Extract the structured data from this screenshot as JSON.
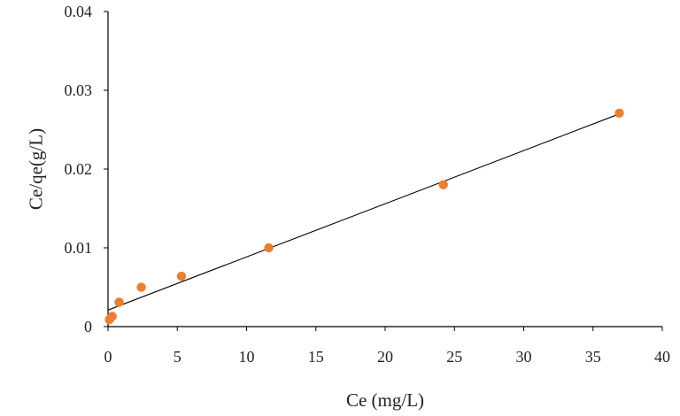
{
  "chart_data": {
    "type": "scatter",
    "title": "",
    "xlabel": "Ce (mg/L)",
    "ylabel": "Ce/qe(g/L)",
    "xlim": [
      0,
      40
    ],
    "ylim": [
      0,
      0.04
    ],
    "x_ticks": [
      "0",
      "5",
      "10",
      "15",
      "20",
      "25",
      "30",
      "35",
      "40"
    ],
    "y_ticks": [
      "0",
      "0.01",
      "0.02",
      "0.03",
      "0.04"
    ],
    "grid": false,
    "legend": "none",
    "series": [
      {
        "kind": "points",
        "color": "#ED7D31",
        "points": [
          {
            "x": 0.1,
            "y": 0.0009
          },
          {
            "x": 0.3,
            "y": 0.0013
          },
          {
            "x": 0.8,
            "y": 0.0031
          },
          {
            "x": 2.4,
            "y": 0.005
          },
          {
            "x": 5.3,
            "y": 0.0064
          },
          {
            "x": 11.6,
            "y": 0.01
          },
          {
            "x": 24.2,
            "y": 0.018
          },
          {
            "x": 36.9,
            "y": 0.0271
          }
        ]
      },
      {
        "kind": "trendline",
        "color": "#000000",
        "points": [
          {
            "x": 0,
            "y": 0.0021
          },
          {
            "x": 36.9,
            "y": 0.027
          }
        ]
      }
    ]
  }
}
